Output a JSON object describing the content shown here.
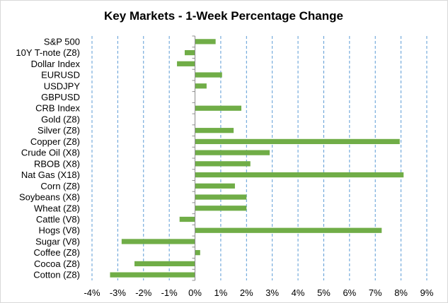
{
  "chart_data": {
    "type": "bar",
    "orientation": "horizontal",
    "title": "Key Markets - 1-Week Percentage Change",
    "xlabel": "",
    "ylabel": "",
    "categories": [
      "S&P 500",
      "10Y T-note (Z8)",
      "Dollar Index",
      "EURUSD",
      "USDJPY",
      "GBPUSD",
      "CRB Index",
      "Gold (Z8)",
      "Silver (Z8)",
      "Copper (Z8)",
      "Crude Oil (X8)",
      "RBOB (X8)",
      "Nat Gas (X18)",
      "Corn (Z8)",
      "Soybeans (X8)",
      "Wheat (Z8)",
      "Cattle (V8)",
      "Hogs (V8)",
      "Sugar (V8)",
      "Coffee (Z8)",
      "Cocoa (Z8)",
      "Cotton (Z8)"
    ],
    "values": [
      0.8,
      -0.4,
      -0.7,
      1.05,
      0.45,
      0.0,
      1.8,
      0.0,
      1.5,
      7.95,
      2.9,
      2.15,
      8.1,
      1.55,
      2.0,
      2.0,
      -0.6,
      7.25,
      -2.85,
      0.2,
      -2.35,
      -3.3
    ],
    "xlim": [
      -4,
      9
    ],
    "xticks": [
      -4,
      -3,
      -2,
      -1,
      0,
      1,
      2,
      3,
      4,
      5,
      6,
      7,
      8,
      9
    ],
    "xtick_labels": [
      "-4%",
      "-3%",
      "-2%",
      "-1%",
      "0%",
      "1%",
      "2%",
      "3%",
      "4%",
      "5%",
      "6%",
      "7%",
      "8%",
      "9%"
    ],
    "grid": "vertical-dashed",
    "legend": "none",
    "bar_color": "#70ad47",
    "grid_color": "#5b9bd5"
  }
}
